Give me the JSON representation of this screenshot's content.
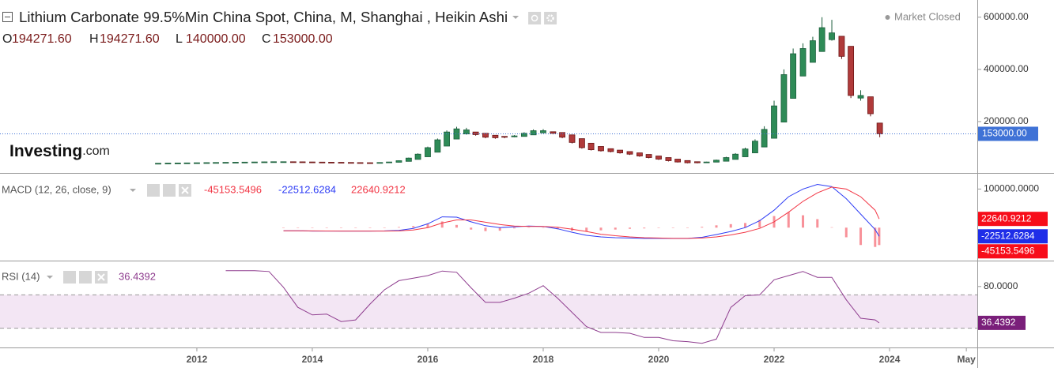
{
  "chart_data": [
    {
      "type": "candlestick",
      "title": "Lithium Carbonate 99.5%Min China Spot, China, M, Shanghai , Heikin Ashi",
      "ohlc_header": [
        [
          "O",
          "194271.60"
        ],
        [
          "H",
          "194271.60"
        ],
        [
          "L",
          "140000.00"
        ],
        [
          "C",
          "153000.00"
        ]
      ],
      "market_status": "Market Closed",
      "logo": [
        "Investing",
        ".com"
      ],
      "up_color": "#2e8b57",
      "down_color": "#b03a3a",
      "xlim": [
        2008.59,
        2025.52
      ],
      "ylim": [
        0,
        666000
      ],
      "yticks": [
        {
          "value": 600000,
          "label": "600000.00"
        },
        {
          "value": 400000,
          "label": "400000.00"
        },
        {
          "value": 200000,
          "label": "200000.00"
        }
      ],
      "last_price": {
        "value": 153000,
        "label": "153000.00",
        "color": "#3f72d6"
      },
      "x": [
        2011.33,
        2011.5,
        2011.67,
        2011.83,
        2012.0,
        2012.17,
        2012.33,
        2012.5,
        2012.67,
        2012.83,
        2013.0,
        2013.17,
        2013.33,
        2013.5,
        2013.67,
        2013.83,
        2014.0,
        2014.17,
        2014.33,
        2014.5,
        2014.67,
        2014.83,
        2015.0,
        2015.17,
        2015.33,
        2015.5,
        2015.67,
        2015.83,
        2016.0,
        2016.17,
        2016.33,
        2016.5,
        2016.67,
        2016.83,
        2017.0,
        2017.17,
        2017.33,
        2017.5,
        2017.67,
        2017.83,
        2018.0,
        2018.17,
        2018.33,
        2018.5,
        2018.67,
        2018.83,
        2019.0,
        2019.17,
        2019.33,
        2019.5,
        2019.67,
        2019.83,
        2020.0,
        2020.17,
        2020.33,
        2020.5,
        2020.67,
        2020.83,
        2021.0,
        2021.17,
        2021.33,
        2021.5,
        2021.67,
        2021.83,
        2022.0,
        2022.17,
        2022.33,
        2022.5,
        2022.67,
        2022.83,
        2023.0,
        2023.17,
        2023.33,
        2023.5,
        2023.67,
        2023.83
      ],
      "open": [
        39500,
        39750,
        40250,
        40750,
        41250,
        41750,
        42250,
        42750,
        43250,
        43750,
        44250,
        44750,
        45250,
        45750,
        45900,
        45600,
        45100,
        44600,
        44100,
        43600,
        43100,
        42600,
        42200,
        42000,
        42500,
        44000,
        47500,
        55000,
        65000,
        82500,
        106000,
        133000,
        152500,
        160000,
        155000,
        147500,
        143000,
        141500,
        143000,
        149000,
        157000,
        161000,
        158000,
        149000,
        134500,
        117000,
        104500,
        96000,
        90500,
        85000,
        80000,
        74000,
        68000,
        62000,
        56000,
        50500,
        46000,
        44000,
        44500,
        48000,
        55000,
        65000,
        80000,
        102500,
        136000,
        198000,
        289000,
        374500,
        427000,
        468500,
        514000,
        527000,
        488500,
        290000,
        295000,
        194271.6
      ],
      "high": [
        40500,
        41000,
        41500,
        42000,
        42500,
        43000,
        43500,
        44000,
        44500,
        45000,
        45500,
        46000,
        46500,
        46500,
        46400,
        46100,
        45600,
        45100,
        44600,
        44100,
        43600,
        43100,
        42700,
        43500,
        45500,
        51000,
        62000,
        78000,
        104000,
        135000,
        166000,
        180000,
        176000,
        160000,
        155000,
        147500,
        144000,
        148000,
        159000,
        170000,
        171000,
        162000,
        158000,
        149000,
        134500,
        117000,
        104500,
        96000,
        90500,
        85000,
        80000,
        74000,
        68000,
        62000,
        56000,
        50500,
        46000,
        46000,
        54000,
        65000,
        79000,
        100000,
        132000,
        182000,
        280000,
        400000,
        480000,
        500000,
        525000,
        600000,
        590000,
        527000,
        488500,
        320000,
        295000,
        194271.6
      ],
      "low": [
        39000,
        39250,
        39750,
        40250,
        40750,
        41250,
        41750,
        42250,
        42750,
        43250,
        43750,
        44250,
        44750,
        45250,
        45000,
        44500,
        44000,
        43500,
        43000,
        42500,
        42000,
        41500,
        41500,
        41500,
        42000,
        43500,
        47000,
        55000,
        65000,
        82500,
        106000,
        133000,
        150000,
        146000,
        136000,
        134000,
        136000,
        140000,
        143000,
        149000,
        155000,
        151000,
        136000,
        116000,
        96000,
        89000,
        85000,
        82000,
        77000,
        72000,
        65000,
        59000,
        53000,
        47000,
        43000,
        40000,
        40000,
        42000,
        44500,
        48000,
        55000,
        65000,
        80000,
        102500,
        136000,
        198000,
        289000,
        374500,
        427000,
        468500,
        510000,
        440000,
        290000,
        280000,
        220000,
        140000
      ],
      "close": [
        40000,
        40500,
        41000,
        41500,
        42000,
        42500,
        43000,
        43500,
        44000,
        44500,
        45000,
        45500,
        46000,
        46000,
        45500,
        45000,
        44500,
        44000,
        43500,
        43000,
        42500,
        42000,
        42000,
        43000,
        45000,
        50000,
        60000,
        75000,
        100000,
        130000,
        160000,
        172000,
        168000,
        150000,
        140000,
        138000,
        140000,
        145000,
        155000,
        165000,
        165000,
        155000,
        140000,
        120000,
        100000,
        92000,
        88000,
        85000,
        80000,
        75000,
        68000,
        62000,
        56000,
        50000,
        45000,
        42000,
        42000,
        45000,
        52000,
        62000,
        75000,
        95000,
        125000,
        170000,
        260000,
        380000,
        460000,
        480000,
        510000,
        560000,
        540000,
        450000,
        300000,
        300000,
        230000,
        153000
      ]
    },
    {
      "type": "line",
      "title": "MACD (12, 26, close, 9)",
      "xlim": [
        2008.59,
        2025.52
      ],
      "ylim": [
        -85400,
        139600
      ],
      "yticks": [
        {
          "value": 100000,
          "label": "100000.0000"
        }
      ],
      "x": [
        2013.5,
        2013.75,
        2014.0,
        2014.25,
        2014.5,
        2014.75,
        2015.0,
        2015.25,
        2015.5,
        2015.75,
        2016.0,
        2016.25,
        2016.5,
        2016.75,
        2017.0,
        2017.25,
        2017.5,
        2017.75,
        2018.0,
        2018.25,
        2018.5,
        2018.75,
        2019.0,
        2019.25,
        2019.5,
        2019.75,
        2020.0,
        2020.25,
        2020.5,
        2020.75,
        2021.0,
        2021.25,
        2021.5,
        2021.75,
        2022.0,
        2022.25,
        2022.5,
        2022.75,
        2023.0,
        2023.25,
        2023.5,
        2023.75,
        2023.82
      ],
      "series": [
        {
          "kind": "bar",
          "color": "#f23645",
          "values": [
            0,
            0,
            -500,
            -300,
            0,
            0,
            0,
            500,
            1500,
            4000,
            10000,
            16000,
            7000,
            -5000,
            -9000,
            -8000,
            -2000,
            1000,
            0,
            -4000,
            -8000,
            -10000,
            -7000,
            -5000,
            -3000,
            -2000,
            -1000,
            0,
            0,
            2000,
            6000,
            9000,
            12000,
            20000,
            30000,
            40000,
            32000,
            22000,
            1000,
            -25000,
            -45000,
            -50000,
            -45153.5496
          ]
        },
        {
          "kind": "line",
          "color": "#2e3df5",
          "values": [
            -8000,
            -8000,
            -9000,
            -9000,
            -9000,
            -9000,
            -9000,
            -8500,
            -7000,
            -2000,
            10000,
            28000,
            27000,
            15000,
            5000,
            0,
            2000,
            4000,
            3000,
            -3000,
            -12000,
            -20000,
            -24000,
            -26000,
            -27000,
            -28000,
            -28000,
            -28000,
            -28000,
            -25000,
            -18000,
            -10000,
            0,
            18000,
            45000,
            80000,
            100000,
            112000,
            106000,
            75000,
            35000,
            -5000,
            -22512.6284
          ]
        },
        {
          "kind": "line",
          "color": "#f23645",
          "values": [
            -8000,
            -8000,
            -8500,
            -8700,
            -9000,
            -9000,
            -9000,
            -9000,
            -8500,
            -6000,
            0,
            12000,
            20000,
            20000,
            14000,
            8000,
            4000,
            3000,
            3000,
            1000,
            -4000,
            -10000,
            -17000,
            -21000,
            -24000,
            -26000,
            -27000,
            -28000,
            -28000,
            -27000,
            -24000,
            -19000,
            -12000,
            -2000,
            15000,
            40000,
            68000,
            90000,
            105000,
            100000,
            80000,
            45000,
            22640.9212
          ]
        }
      ]
    },
    {
      "type": "line",
      "title": "RSI (14)",
      "xlim": [
        2008.59,
        2025.52
      ],
      "ylim": [
        7,
        111
      ],
      "yticks": [
        {
          "value": 80,
          "label": "80.0000"
        }
      ],
      "band": [
        30,
        70
      ],
      "band_color": "#f3e6f4",
      "xticks": [
        2012,
        2014,
        2016,
        2018,
        2020,
        2022,
        2024,
        {
          "value": 2025.33,
          "label": "May"
        }
      ],
      "x": [
        2012.5,
        2012.75,
        2013.0,
        2013.25,
        2013.5,
        2013.75,
        2014.0,
        2014.25,
        2014.5,
        2014.75,
        2015.0,
        2015.25,
        2015.5,
        2015.75,
        2016.0,
        2016.25,
        2016.5,
        2016.75,
        2017.0,
        2017.25,
        2017.5,
        2017.75,
        2018.0,
        2018.25,
        2018.5,
        2018.75,
        2019.0,
        2019.25,
        2019.5,
        2019.75,
        2020.0,
        2020.25,
        2020.5,
        2020.75,
        2021.0,
        2021.25,
        2021.5,
        2021.75,
        2022.0,
        2022.25,
        2022.5,
        2022.75,
        2023.0,
        2023.25,
        2023.5,
        2023.75,
        2023.82
      ],
      "series": [
        {
          "kind": "line",
          "color": "#8e3c8e",
          "values": [
            99,
            99,
            99,
            98,
            79,
            55,
            46,
            47,
            38,
            40,
            59,
            76,
            87,
            90,
            93,
            98.5,
            97,
            78.5,
            61,
            61,
            66,
            72,
            81,
            66,
            49,
            32,
            25,
            25,
            24,
            19,
            19,
            15,
            14,
            12,
            17,
            55,
            69,
            70,
            88,
            93,
            98,
            91,
            91,
            64,
            42,
            40,
            36.4392
          ]
        }
      ]
    }
  ]
}
